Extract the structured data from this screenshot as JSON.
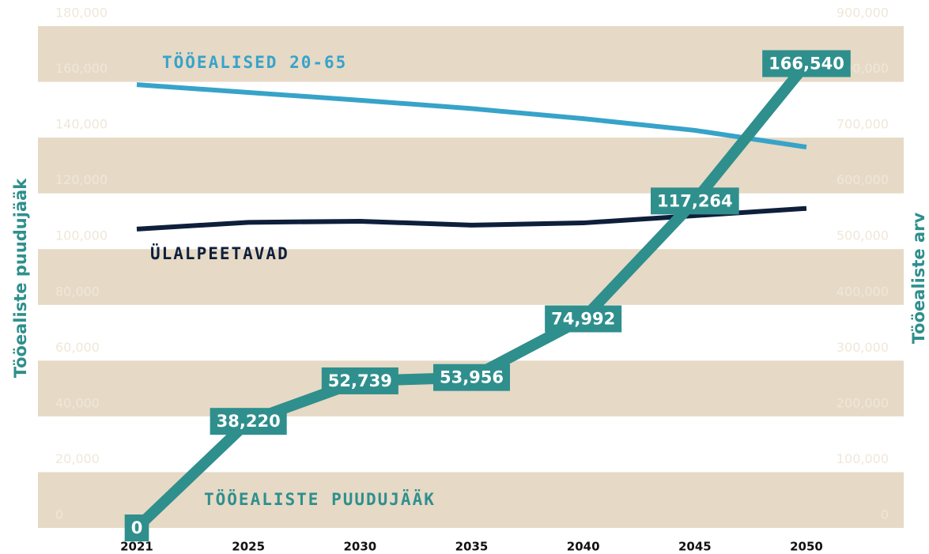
{
  "chart_data": {
    "type": "line",
    "ylabel": "Tööealiste puudujääk",
    "y2label": "Tööealiste arv",
    "categories": [
      "2021",
      "2025",
      "2030",
      "2035",
      "2040",
      "2045",
      "2050"
    ],
    "series": [
      {
        "name": "TÖÖEALISED 20-65",
        "color": "#38a3c8",
        "axis": "y2",
        "values": [
          795000,
          781000,
          767000,
          752000,
          734000,
          713000,
          683000
        ]
      },
      {
        "name": "ÜLALPEETAVAD",
        "color": "#0e1f3c",
        "axis": "y2",
        "values": [
          536000,
          548000,
          550000,
          543000,
          547000,
          560000,
          573000
        ]
      },
      {
        "name": "TÖÖEALISTE PUUDUJÄÄK",
        "color": "#2e8f8c",
        "values": [
          0,
          38220,
          52739,
          53956,
          74992,
          117264,
          166540
        ],
        "value_labels": [
          "0",
          "38,220",
          "52,739",
          "53,956",
          "74,992",
          "117,264",
          "166,540"
        ]
      }
    ],
    "ylim": [
      0,
      180000
    ],
    "yticks": [
      0,
      {
        "value": 20000,
        "label": "20,000"
      },
      {
        "value": 40000,
        "label": "40,000"
      },
      {
        "value": 60000,
        "label": "60,000"
      },
      {
        "value": 80000,
        "label": "80,000"
      },
      {
        "value": 100000,
        "label": "100,000"
      },
      {
        "value": 120000,
        "label": "120,000"
      },
      {
        "value": 140000,
        "label": "140,000"
      },
      {
        "value": 160000,
        "label": "160,000"
      },
      {
        "value": 180000,
        "label": "180,000"
      }
    ],
    "y2lim": [
      0,
      900000
    ],
    "y2ticks": [
      0,
      {
        "value": 100000,
        "label": "100,000"
      },
      {
        "value": 200000,
        "label": "200,000"
      },
      {
        "value": 300000,
        "label": "300,000"
      },
      {
        "value": 400000,
        "label": "400,000"
      },
      {
        "value": 500000,
        "label": "500,000"
      },
      {
        "value": 600000,
        "label": "600,000"
      },
      {
        "value": 700000,
        "label": "700,000"
      },
      {
        "value": 800000,
        "label": "800,000"
      },
      {
        "value": 900000,
        "label": "900,000"
      }
    ],
    "band_color": "#e6dac6"
  }
}
